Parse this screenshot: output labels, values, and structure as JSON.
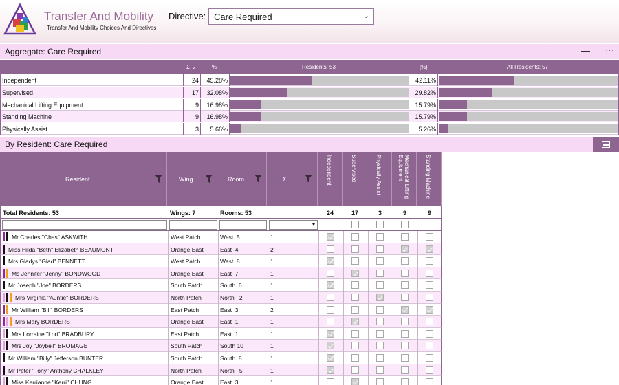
{
  "header": {
    "title": "Transfer And Mobility",
    "subtitle": "Transfer And Mobility Choices And Directives",
    "directive_label": "Directive:",
    "directive_value": "Care Required"
  },
  "aggregate": {
    "title": "Aggregate: Care Required",
    "col_sum": "Σ",
    "col_pct": "%",
    "col_residents": "Residents: 53",
    "col_pct_all": "[%]",
    "col_all_residents": "All Residents: 57",
    "rows": [
      {
        "name": "Independent",
        "sum": "24",
        "pct": "45.28%",
        "pct_all": "42.11%",
        "frac": 0.4528,
        "frac_all": 0.4211
      },
      {
        "name": "Supervised",
        "sum": "17",
        "pct": "32.08%",
        "pct_all": "29.82%",
        "frac": 0.3208,
        "frac_all": 0.2982
      },
      {
        "name": "Mechanical Lifting Equipment",
        "sum": "9",
        "pct": "16.98%",
        "pct_all": "15.79%",
        "frac": 0.1698,
        "frac_all": 0.1579
      },
      {
        "name": "Standing Machine",
        "sum": "9",
        "pct": "16.98%",
        "pct_all": "15.79%",
        "frac": 0.1698,
        "frac_all": 0.1579
      },
      {
        "name": "Physically Assist",
        "sum": "3",
        "pct": "5.66%",
        "pct_all": "5.26%",
        "frac": 0.0566,
        "frac_all": 0.0526
      }
    ]
  },
  "by_resident": {
    "title": "By Resident: Care Required",
    "columns": {
      "resident": "Resident",
      "wing": "Wing",
      "room": "Room",
      "sum": "Σ",
      "independent": "Independent",
      "supervised": "Supervised",
      "physically_assist": "Physically Assist",
      "mechanical": "Mechanical Lifting Equipment",
      "standing": "Standing Machine"
    },
    "totals": {
      "residents": "Total Residents: 53",
      "wings": "Wings: 7",
      "rooms": "Rooms: 53",
      "independent": "24",
      "supervised": "17",
      "physically_assist": "3",
      "mechanical": "9",
      "standing": "9"
    },
    "mark_colors": {
      "purple": "#8e2a8e",
      "black": "#111111",
      "orange": "#f0a020",
      "pink": "#e8a0e0"
    },
    "rows": [
      {
        "name": "Mr Charles \"Chas\" ASKWITH",
        "wing": "West Patch",
        "room": "West  5",
        "sum": "1",
        "marks": [
          "purple",
          "black"
        ],
        "checks": [
          true,
          false,
          false,
          false,
          false
        ]
      },
      {
        "name": "Miss Hilda \"Beth\" Elizabeth BEAUMONT",
        "wing": "Orange East",
        "room": "East  4",
        "sum": "2",
        "marks": [
          "black"
        ],
        "checks": [
          false,
          false,
          false,
          true,
          true
        ]
      },
      {
        "name": "Mrs Gladys \"Glad\" BENNETT",
        "wing": "West Patch",
        "room": "West  8",
        "sum": "1",
        "marks": [
          "black"
        ],
        "checks": [
          true,
          false,
          false,
          false,
          false
        ]
      },
      {
        "name": "Ms Jennifer \"Jenny\" BONDWOOD",
        "wing": "Orange East",
        "room": "East  7",
        "sum": "1",
        "marks": [
          "purple",
          "orange"
        ],
        "checks": [
          false,
          true,
          false,
          false,
          false
        ]
      },
      {
        "name": "Mr Joseph \"Joe\" BORDERS",
        "wing": "South Patch",
        "room": "South  6",
        "sum": "1",
        "marks": [
          "black"
        ],
        "checks": [
          true,
          false,
          false,
          false,
          false
        ]
      },
      {
        "name": "Mrs Virginia \"Auntie\" BORDERS",
        "wing": "North Patch",
        "room": "North   2",
        "sum": "1",
        "marks": [
          "pink",
          "black",
          "orange"
        ],
        "checks": [
          false,
          false,
          true,
          false,
          false
        ]
      },
      {
        "name": "Mr William \"Bill\" BORDERS",
        "wing": "East Patch",
        "room": "East  3",
        "sum": "2",
        "marks": [
          "purple",
          "orange"
        ],
        "checks": [
          false,
          false,
          false,
          true,
          true
        ]
      },
      {
        "name": "Mrs Mary BORDERS",
        "wing": "Orange East",
        "room": "East  1",
        "sum": "1",
        "marks": [
          "purple",
          "pink",
          "orange"
        ],
        "checks": [
          false,
          true,
          false,
          false,
          false
        ]
      },
      {
        "name": "Mrs Lorraine \"Lori\" BRADBURY",
        "wing": "East Patch",
        "room": "East  1",
        "sum": "1",
        "marks": [
          "pink",
          "black"
        ],
        "checks": [
          true,
          false,
          false,
          false,
          false
        ]
      },
      {
        "name": "Mrs Joy \"Joybell\" BROMAGE",
        "wing": "South Patch",
        "room": "South 10",
        "sum": "1",
        "marks": [
          "pink",
          "black"
        ],
        "checks": [
          true,
          false,
          false,
          false,
          false
        ]
      },
      {
        "name": "Mr William \"Billy\" Jefferson BUNTER",
        "wing": "South Patch",
        "room": "South  8",
        "sum": "1",
        "marks": [
          "black"
        ],
        "checks": [
          true,
          false,
          false,
          false,
          false
        ]
      },
      {
        "name": "Mr Peter \"Tony\" Anthony CHALKLEY",
        "wing": "North Patch",
        "room": "North   5",
        "sum": "1",
        "marks": [
          "black"
        ],
        "checks": [
          true,
          false,
          false,
          false,
          false
        ]
      },
      {
        "name": "Miss Kerrianne \"Kerri\" CHUNG",
        "wing": "Orange East",
        "room": "East  3",
        "sum": "1",
        "marks": [
          "pink",
          "black"
        ],
        "checks": [
          false,
          true,
          false,
          false,
          false
        ]
      }
    ]
  }
}
